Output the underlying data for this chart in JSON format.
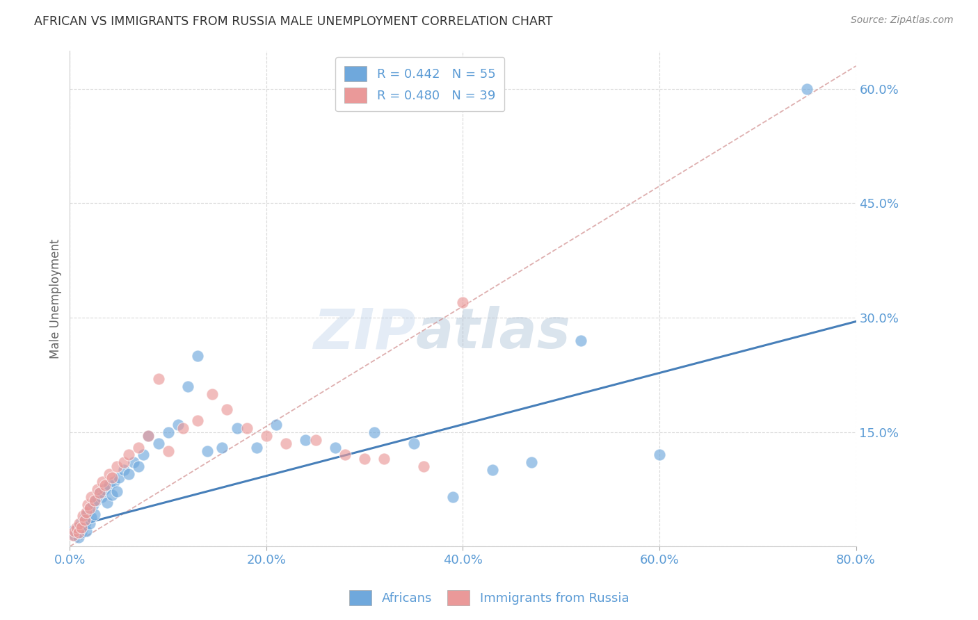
{
  "title": "AFRICAN VS IMMIGRANTS FROM RUSSIA MALE UNEMPLOYMENT CORRELATION CHART",
  "source": "Source: ZipAtlas.com",
  "ylabel": "Male Unemployment",
  "xlim": [
    0.0,
    0.8
  ],
  "ylim": [
    0.0,
    0.65
  ],
  "yticks": [
    0.0,
    0.15,
    0.3,
    0.45,
    0.6
  ],
  "xticks": [
    0.0,
    0.2,
    0.4,
    0.6,
    0.8
  ],
  "ytick_labels": [
    "",
    "15.0%",
    "30.0%",
    "45.0%",
    "60.0%"
  ],
  "xtick_labels": [
    "0.0%",
    "20.0%",
    "40.0%",
    "60.0%",
    "80.0%"
  ],
  "legend_africans": "R = 0.442   N = 55",
  "legend_russia": "R = 0.480   N = 39",
  "watermark_zip": "ZIP",
  "watermark_atlas": "atlas",
  "africans_color": "#6fa8dc",
  "russia_color": "#ea9999",
  "africans_line_color": "#3d78b5",
  "russia_line_color": "#c97a7a",
  "africa_trend_x": [
    0.0,
    0.8
  ],
  "africa_trend_y": [
    0.025,
    0.295
  ],
  "russia_trend_x": [
    0.0,
    0.8
  ],
  "russia_trend_y": [
    0.0,
    0.63
  ],
  "africans_x": [
    0.003,
    0.005,
    0.007,
    0.008,
    0.009,
    0.01,
    0.011,
    0.012,
    0.013,
    0.014,
    0.015,
    0.016,
    0.017,
    0.018,
    0.02,
    0.021,
    0.022,
    0.024,
    0.025,
    0.027,
    0.03,
    0.032,
    0.035,
    0.038,
    0.04,
    0.043,
    0.045,
    0.048,
    0.05,
    0.055,
    0.06,
    0.065,
    0.07,
    0.075,
    0.08,
    0.09,
    0.1,
    0.11,
    0.12,
    0.13,
    0.14,
    0.155,
    0.17,
    0.19,
    0.21,
    0.24,
    0.27,
    0.31,
    0.35,
    0.39,
    0.43,
    0.47,
    0.52,
    0.6,
    0.75
  ],
  "africans_y": [
    0.02,
    0.015,
    0.018,
    0.025,
    0.012,
    0.022,
    0.03,
    0.018,
    0.025,
    0.035,
    0.028,
    0.04,
    0.02,
    0.045,
    0.03,
    0.05,
    0.038,
    0.055,
    0.042,
    0.06,
    0.07,
    0.065,
    0.075,
    0.058,
    0.08,
    0.068,
    0.085,
    0.072,
    0.09,
    0.1,
    0.095,
    0.11,
    0.105,
    0.12,
    0.145,
    0.135,
    0.15,
    0.16,
    0.21,
    0.25,
    0.125,
    0.13,
    0.155,
    0.13,
    0.16,
    0.14,
    0.13,
    0.15,
    0.135,
    0.065,
    0.1,
    0.11,
    0.27,
    0.12,
    0.6
  ],
  "russia_x": [
    0.003,
    0.005,
    0.007,
    0.009,
    0.01,
    0.012,
    0.013,
    0.015,
    0.017,
    0.018,
    0.02,
    0.022,
    0.025,
    0.028,
    0.03,
    0.033,
    0.036,
    0.04,
    0.043,
    0.048,
    0.055,
    0.06,
    0.07,
    0.08,
    0.09,
    0.1,
    0.115,
    0.13,
    0.145,
    0.16,
    0.18,
    0.2,
    0.22,
    0.25,
    0.28,
    0.3,
    0.32,
    0.36,
    0.4
  ],
  "russia_y": [
    0.015,
    0.02,
    0.025,
    0.018,
    0.03,
    0.025,
    0.04,
    0.035,
    0.045,
    0.055,
    0.05,
    0.065,
    0.06,
    0.075,
    0.07,
    0.085,
    0.08,
    0.095,
    0.09,
    0.105,
    0.11,
    0.12,
    0.13,
    0.145,
    0.22,
    0.125,
    0.155,
    0.165,
    0.2,
    0.18,
    0.155,
    0.145,
    0.135,
    0.14,
    0.12,
    0.115,
    0.115,
    0.105,
    0.32
  ],
  "background_color": "#ffffff",
  "grid_color": "#d0d0d0",
  "tick_label_color": "#5b9bd5"
}
